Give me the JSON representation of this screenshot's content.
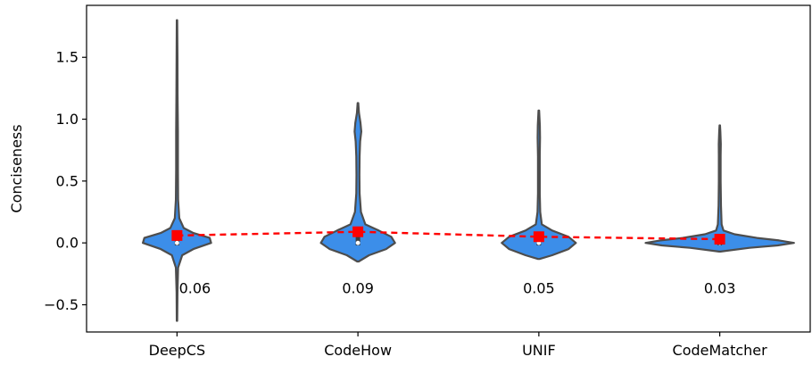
{
  "chart_data": {
    "type": "violin",
    "title": "",
    "xlabel": "",
    "ylabel": "Conciseness",
    "ylim": [
      -0.72,
      1.92
    ],
    "yticks": [
      -0.5,
      0.0,
      0.5,
      1.0,
      1.5
    ],
    "ytick_labels": [
      "−0.5",
      "0.0",
      "0.5",
      "1.0",
      "1.5"
    ],
    "categories": [
      "DeepCS",
      "CodeHow",
      "UNIF",
      "CodeMatcher"
    ],
    "means": [
      0.06,
      0.09,
      0.05,
      0.03
    ],
    "mean_labels": [
      "0.06",
      "0.09",
      "0.05",
      "0.03"
    ],
    "medians": [
      0.0,
      0.0,
      0.0,
      0.0
    ],
    "mean_label_y": -0.37,
    "violins": [
      {
        "name": "DeepCS",
        "min": -0.63,
        "max": 1.8,
        "density": [
          [
            -0.63,
            0.003
          ],
          [
            -0.4,
            0.006
          ],
          [
            -0.2,
            0.015
          ],
          [
            -0.1,
            0.07
          ],
          [
            -0.05,
            0.22
          ],
          [
            0.0,
            0.46
          ],
          [
            0.04,
            0.44
          ],
          [
            0.08,
            0.22
          ],
          [
            0.12,
            0.09
          ],
          [
            0.2,
            0.03
          ],
          [
            0.35,
            0.015
          ],
          [
            0.6,
            0.012
          ],
          [
            0.9,
            0.012
          ],
          [
            1.2,
            0.008
          ],
          [
            1.5,
            0.006
          ],
          [
            1.8,
            0.003
          ]
        ]
      },
      {
        "name": "CodeHow",
        "min": -0.15,
        "max": 1.13,
        "density": [
          [
            -0.15,
            0.01
          ],
          [
            -0.1,
            0.15
          ],
          [
            -0.05,
            0.38
          ],
          [
            0.0,
            0.5
          ],
          [
            0.05,
            0.45
          ],
          [
            0.1,
            0.28
          ],
          [
            0.15,
            0.1
          ],
          [
            0.25,
            0.04
          ],
          [
            0.4,
            0.022
          ],
          [
            0.55,
            0.02
          ],
          [
            0.7,
            0.022
          ],
          [
            0.82,
            0.03
          ],
          [
            0.9,
            0.045
          ],
          [
            0.97,
            0.035
          ],
          [
            1.05,
            0.014
          ],
          [
            1.13,
            0.004
          ]
        ]
      },
      {
        "name": "UNIF",
        "min": -0.13,
        "max": 1.07,
        "density": [
          [
            -0.13,
            0.01
          ],
          [
            -0.1,
            0.18
          ],
          [
            -0.05,
            0.4
          ],
          [
            0.0,
            0.5
          ],
          [
            0.05,
            0.4
          ],
          [
            0.1,
            0.18
          ],
          [
            0.15,
            0.04
          ],
          [
            0.25,
            0.018
          ],
          [
            0.4,
            0.012
          ],
          [
            0.55,
            0.012
          ],
          [
            0.7,
            0.012
          ],
          [
            0.85,
            0.016
          ],
          [
            0.95,
            0.014
          ],
          [
            1.07,
            0.004
          ]
        ]
      },
      {
        "name": "CodeMatcher",
        "min": -0.07,
        "max": 0.95,
        "density": [
          [
            -0.07,
            0.01
          ],
          [
            -0.04,
            0.4
          ],
          [
            -0.02,
            0.78
          ],
          [
            0.0,
            1.0
          ],
          [
            0.02,
            0.8
          ],
          [
            0.04,
            0.5
          ],
          [
            0.07,
            0.2
          ],
          [
            0.1,
            0.05
          ],
          [
            0.15,
            0.025
          ],
          [
            0.3,
            0.016
          ],
          [
            0.5,
            0.012
          ],
          [
            0.7,
            0.012
          ],
          [
            0.8,
            0.014
          ],
          [
            0.9,
            0.008
          ],
          [
            0.95,
            0.003
          ]
        ]
      }
    ],
    "colors": {
      "violin_fill": "#3c8ee9",
      "violin_edge": "#4d4d4d",
      "mean_marker": "#ff0000",
      "mean_line": "#ff0000",
      "median_dot": "#ffffff",
      "iqr_box": "#3d3d3d"
    },
    "grid": false,
    "legend": "none"
  }
}
